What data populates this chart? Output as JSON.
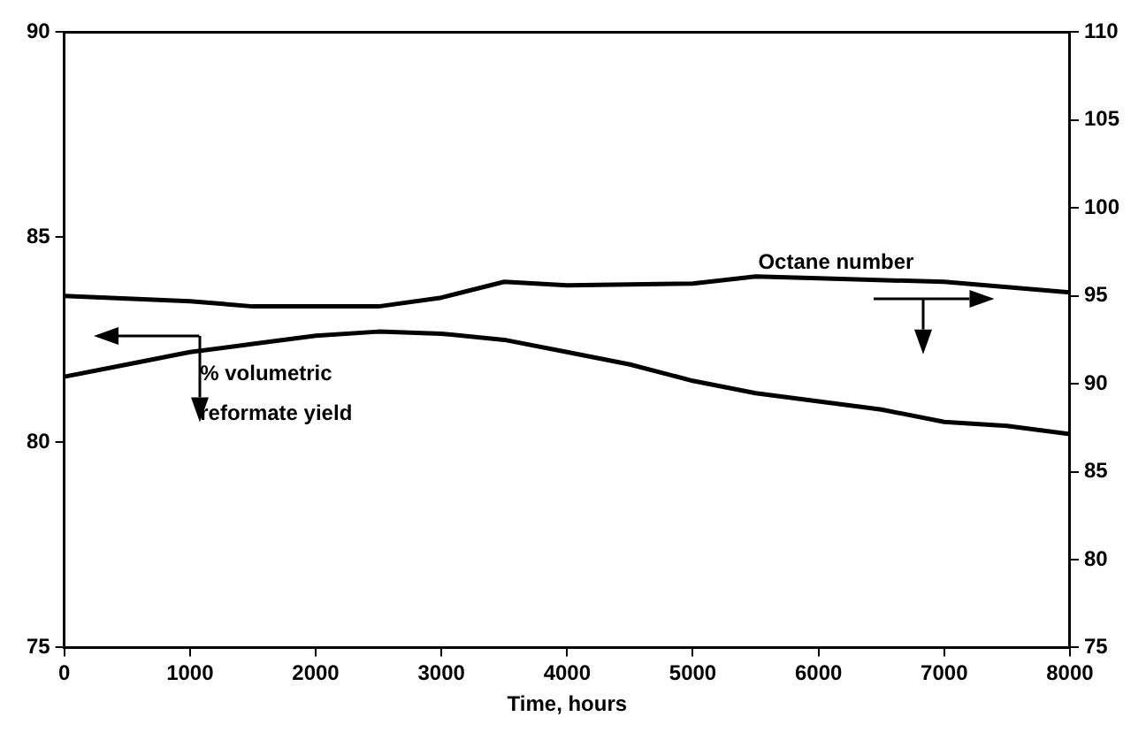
{
  "chart_data": {
    "type": "line",
    "xlabel": "Time, hours",
    "xlim": [
      0,
      8000
    ],
    "xticks": [
      0,
      1000,
      2000,
      3000,
      4000,
      5000,
      6000,
      7000,
      8000
    ],
    "ylim": [
      75,
      90
    ],
    "yticks": [
      75,
      80,
      85,
      90
    ],
    "y2lim": [
      75,
      110
    ],
    "y2ticks": [
      75,
      80,
      85,
      90,
      95,
      100,
      105,
      110
    ],
    "grid": false,
    "legend": false,
    "marker": "none",
    "line_style": "solid",
    "series": [
      {
        "name": "% volumetric reformate yield",
        "color": "#000000",
        "x": [
          0,
          500,
          1000,
          1500,
          2000,
          2500,
          3000,
          3500,
          4000,
          4500,
          5000,
          5500,
          6000,
          6500,
          7000,
          7500,
          8000
        ],
        "values": [
          81.6,
          81.9,
          82.2,
          82.4,
          82.6,
          82.7,
          82.65,
          82.5,
          82.2,
          81.9,
          81.5,
          81.2,
          81.0,
          80.8,
          80.5,
          80.4,
          80.2
        ]
      },
      {
        "name": "Octane number",
        "color": "#000000",
        "axis": "y2",
        "x": [
          0,
          1000,
          1500,
          2000,
          2500,
          3000,
          3500,
          4000,
          5000,
          5500,
          6000,
          7000,
          8000
        ],
        "values": [
          95.0,
          94.7,
          94.4,
          94.4,
          94.4,
          94.9,
          95.8,
          95.6,
          95.7,
          96.1,
          96.0,
          95.8,
          95.2
        ]
      }
    ]
  }
}
